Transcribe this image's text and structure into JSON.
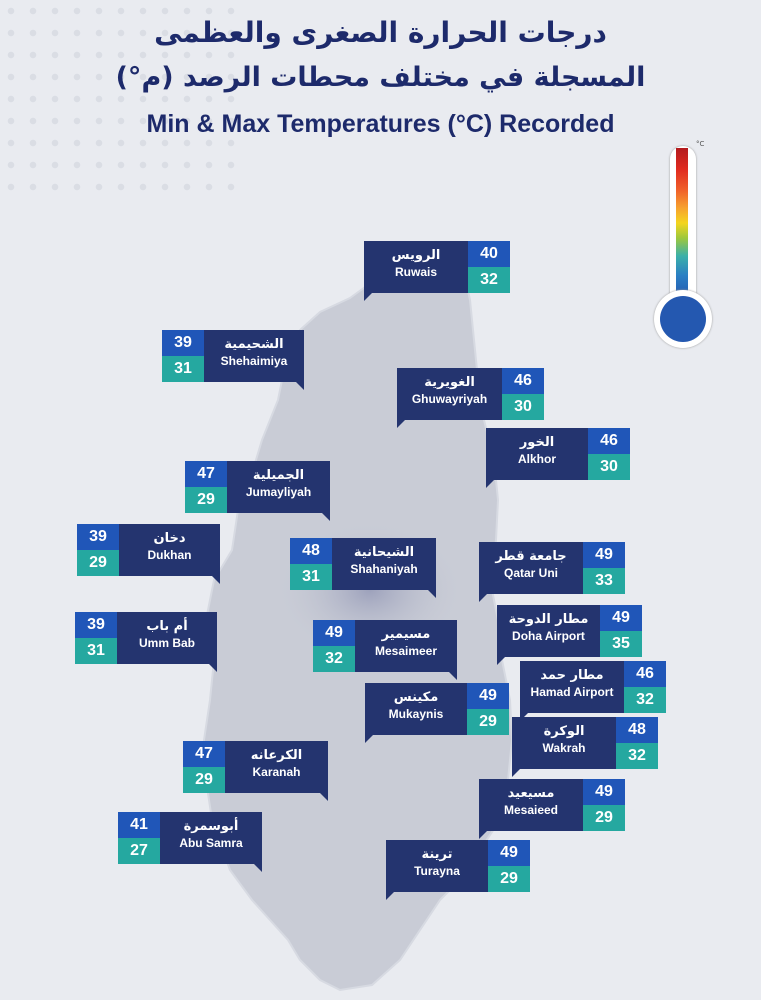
{
  "title": {
    "ar_line1": "درجات الحرارة الصغرى والعظمى",
    "ar_line2": "(°م) المسجلة في مختلف محطات الرصد",
    "en": "Min & Max Temperatures (°C) Recorded"
  },
  "thermometer": {
    "unit": "°C"
  },
  "colors": {
    "name_box": "#24346f",
    "max_box": "#2056b8",
    "min_box": "#25a8a0",
    "map_land": "#c9ccd6"
  },
  "stations": [
    {
      "id": "ruwais",
      "ar": "الرويس",
      "en": "Ruwais",
      "max": "40",
      "min": "32"
    },
    {
      "id": "shehaimiya",
      "ar": "الشحيمية",
      "en": "Shehaimiya",
      "max": "39",
      "min": "31"
    },
    {
      "id": "ghuwayriyah",
      "ar": "الغويرية",
      "en": "Ghuwayriyah",
      "max": "46",
      "min": "30"
    },
    {
      "id": "alkhor",
      "ar": "الخور",
      "en": "Alkhor",
      "max": "46",
      "min": "30"
    },
    {
      "id": "jumayliyah",
      "ar": "الجميلية",
      "en": "Jumayliyah",
      "max": "47",
      "min": "29"
    },
    {
      "id": "dukhan",
      "ar": "دخان",
      "en": "Dukhan",
      "max": "39",
      "min": "29"
    },
    {
      "id": "shahaniyah",
      "ar": "الشيحانية",
      "en": "Shahaniyah",
      "max": "48",
      "min": "31"
    },
    {
      "id": "qatar-uni",
      "ar": "جامعة قطر",
      "en": "Qatar Uni",
      "max": "49",
      "min": "33"
    },
    {
      "id": "umm-bab",
      "ar": "أم باب",
      "en": "Umm Bab",
      "max": "39",
      "min": "31"
    },
    {
      "id": "mesaimeer",
      "ar": "مسيمير",
      "en": "Mesaimeer",
      "max": "49",
      "min": "32"
    },
    {
      "id": "doha-airport",
      "ar": "مطار الدوحة",
      "en": "Doha Airport",
      "max": "49",
      "min": "35"
    },
    {
      "id": "hamad-airport",
      "ar": "مطار حمد",
      "en": "Hamad Airport",
      "max": "46",
      "min": "32"
    },
    {
      "id": "mukaynis",
      "ar": "مكينس",
      "en": "Mukaynis",
      "max": "49",
      "min": "29"
    },
    {
      "id": "wakrah",
      "ar": "الوكرة",
      "en": "Wakrah",
      "max": "48",
      "min": "32"
    },
    {
      "id": "karanah",
      "ar": "الكرعانه",
      "en": "Karanah",
      "max": "47",
      "min": "29"
    },
    {
      "id": "mesaieed",
      "ar": "مسيعيد",
      "en": "Mesaieed",
      "max": "49",
      "min": "29"
    },
    {
      "id": "abu-samra",
      "ar": "أبوسمرة",
      "en": "Abu Samra",
      "max": "41",
      "min": "27"
    },
    {
      "id": "turayna",
      "ar": "ترينة",
      "en": "Turayna",
      "max": "49",
      "min": "29"
    }
  ]
}
